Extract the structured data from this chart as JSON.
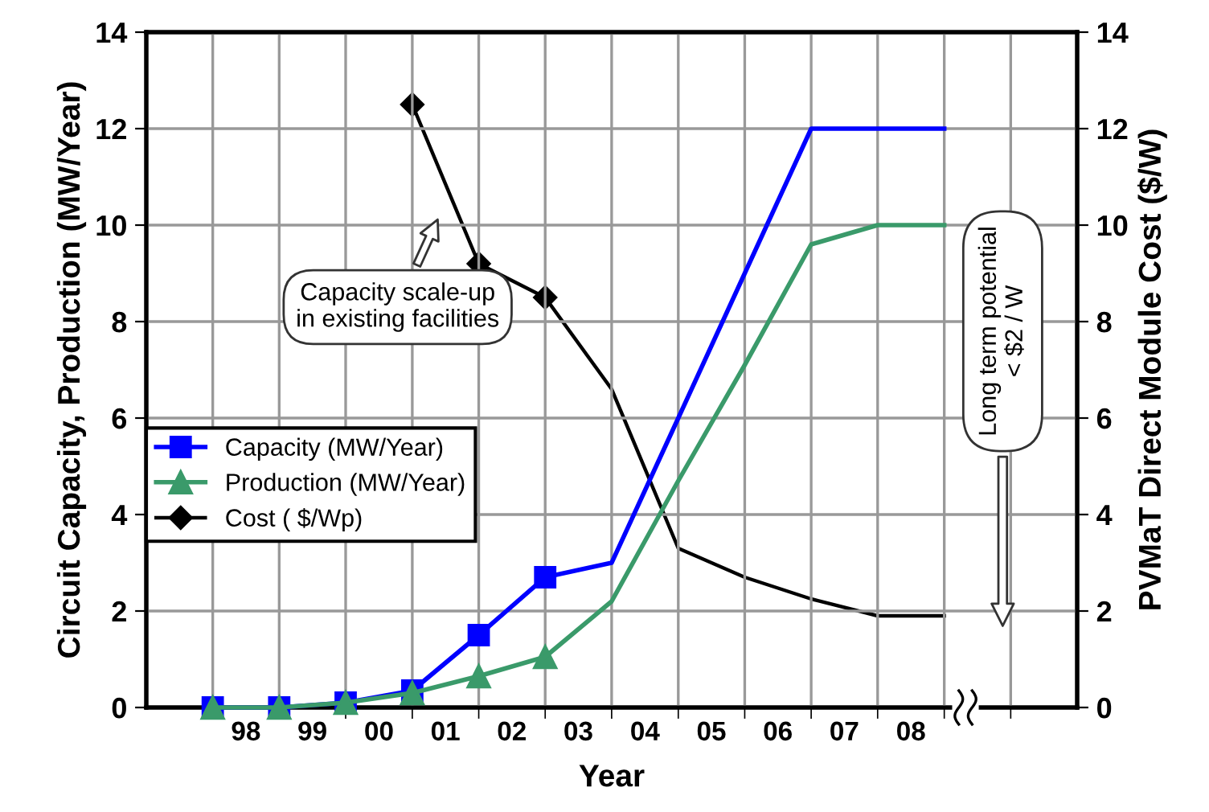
{
  "chart_data": {
    "type": "line",
    "xlabel": "Year",
    "ylabel": "Circuit Capacity, Production (MW/Year)",
    "y2label": "PVMaT Direct Module Cost ($/W)",
    "xlim": [
      "1997",
      "2011"
    ],
    "xticks": [
      {
        "value": "1998",
        "label": null
      },
      {
        "value": "1999",
        "label": null
      },
      {
        "value": "2000",
        "label": null
      },
      {
        "value": "2001",
        "label": null
      },
      {
        "value": "2002",
        "label": null
      },
      {
        "value": "2003",
        "label": null
      },
      {
        "value": "2004",
        "label": null
      },
      {
        "value": "2005",
        "label": null
      },
      {
        "value": "2006",
        "label": null
      },
      {
        "value": "2007",
        "label": null
      },
      {
        "value": "2008",
        "label": null
      },
      {
        "value": "2009",
        "label": null
      },
      {
        "value": "2010",
        "label": null
      },
      {
        "value": "1998-07-02",
        "label": "98"
      },
      {
        "value": "1999-07-02",
        "label": "99"
      },
      {
        "value": "2000-07-02",
        "label": "00"
      },
      {
        "value": "2001-07-02",
        "label": "01"
      },
      {
        "value": "2002-07-02",
        "label": "02"
      },
      {
        "value": "2003-07-02",
        "label": "03"
      },
      {
        "value": "2004-07-02",
        "label": "04"
      },
      {
        "value": "2005-07-02",
        "label": "05"
      },
      {
        "value": "2006-07-02",
        "label": "06"
      },
      {
        "value": "2007-07-02",
        "label": "07"
      },
      {
        "value": "2008-07-02",
        "label": "08"
      }
    ],
    "ylim": [
      0,
      14
    ],
    "yticks": [
      0,
      2,
      4,
      6,
      8,
      10,
      12,
      14
    ],
    "y2lim": [
      0,
      14
    ],
    "y2ticks": [
      0,
      2,
      4,
      6,
      8,
      10,
      12,
      14
    ],
    "grid": true,
    "legend": "center left",
    "line_style": "solid",
    "series": [
      {
        "name": "Capacity (MW/Year)",
        "color": "#0000ff",
        "marker": "square",
        "x": [
          "1998",
          "1999",
          "2000",
          "2001",
          "2002",
          "2003"
        ],
        "values": [
          0,
          0,
          0.1,
          0.35,
          1.5,
          2.7
        ]
      },
      {
        "color": "#0000ff",
        "marker": "none",
        "x": [
          "2003",
          "2004",
          "2005",
          "2006",
          "2007",
          "2008",
          "2009"
        ],
        "values": [
          2.7,
          3.0,
          6,
          9,
          12,
          12,
          12
        ]
      },
      {
        "name": "Production (MW/Year)",
        "color": "#3a9a6a",
        "marker": "triangle",
        "x": [
          "1998",
          "1999",
          "2000",
          "2001",
          "2002",
          "2003"
        ],
        "values": [
          0,
          0,
          0.1,
          0.3,
          0.65,
          1.05
        ]
      },
      {
        "color": "#3a9a6a",
        "marker": "none",
        "x": [
          "2003",
          "2004",
          "2005",
          "2006",
          "2007",
          "2008",
          "2009"
        ],
        "values": [
          1.05,
          2.2,
          4.7,
          7.1,
          9.6,
          10,
          10
        ]
      },
      {
        "name": "Cost ( $/Wp)",
        "color": "#000000",
        "marker": "diamond",
        "axis": "y2",
        "x": [
          "2001",
          "2002",
          "2003"
        ],
        "values": [
          12.5,
          9.2,
          8.5
        ]
      },
      {
        "color": "#000000",
        "marker": "none",
        "axis": "y2",
        "x": [
          "2003",
          "2004",
          "2005",
          "2006",
          "2007",
          "2008",
          "2009"
        ],
        "values": [
          8.5,
          6.6,
          3.3,
          2.7,
          2.25,
          1.9,
          1.9
        ]
      }
    ],
    "annotations": [
      "Capacity scale-up\nin existing facilities",
      "Long term potential\n< $2 / W"
    ]
  }
}
